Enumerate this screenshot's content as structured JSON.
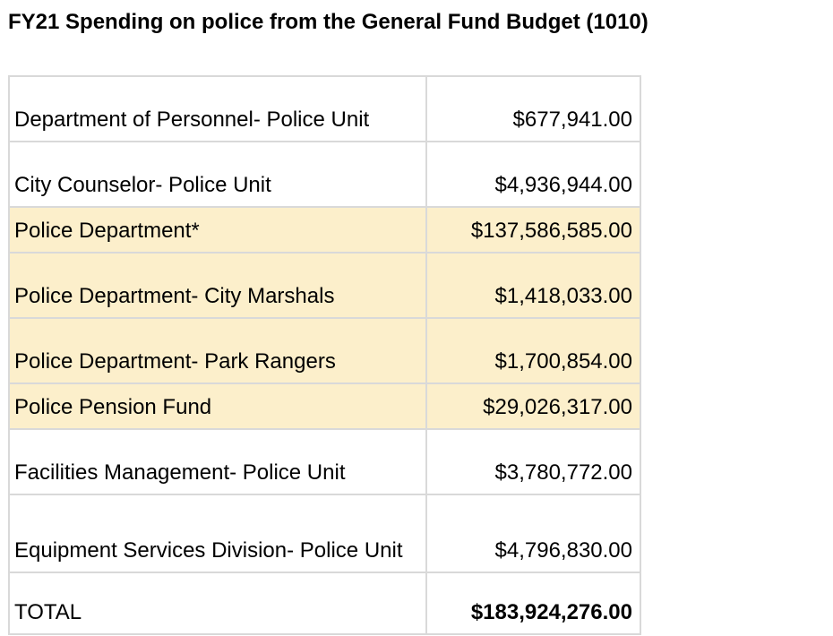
{
  "title": "FY21 Spending on police from the General Fund Budget (1010)",
  "colors": {
    "highlight_row": "#fcefcb",
    "border": "#d9d9d9"
  },
  "rows": [
    {
      "label": "Department of Personnel- Police Unit",
      "amount": "$677,941.00",
      "highlighted": false
    },
    {
      "label": "City Counselor- Police Unit",
      "amount": "$4,936,944.00",
      "highlighted": false
    },
    {
      "label": "Police Department*",
      "amount": "$137,586,585.00",
      "highlighted": true
    },
    {
      "label": "Police Department- City Marshals",
      "amount": "$1,418,033.00",
      "highlighted": true
    },
    {
      "label": "Police Department- Park Rangers",
      "amount": "$1,700,854.00",
      "highlighted": true
    },
    {
      "label": "Police Pension Fund",
      "amount": "$29,026,317.00",
      "highlighted": true
    },
    {
      "label": "Facilities Management- Police Unit",
      "amount": "$3,780,772.00",
      "highlighted": false
    },
    {
      "label": "Equipment Services Division- Police Unit",
      "amount": "$4,796,830.00",
      "highlighted": false
    }
  ],
  "total": {
    "label": "TOTAL",
    "amount": "$183,924,276.00"
  }
}
